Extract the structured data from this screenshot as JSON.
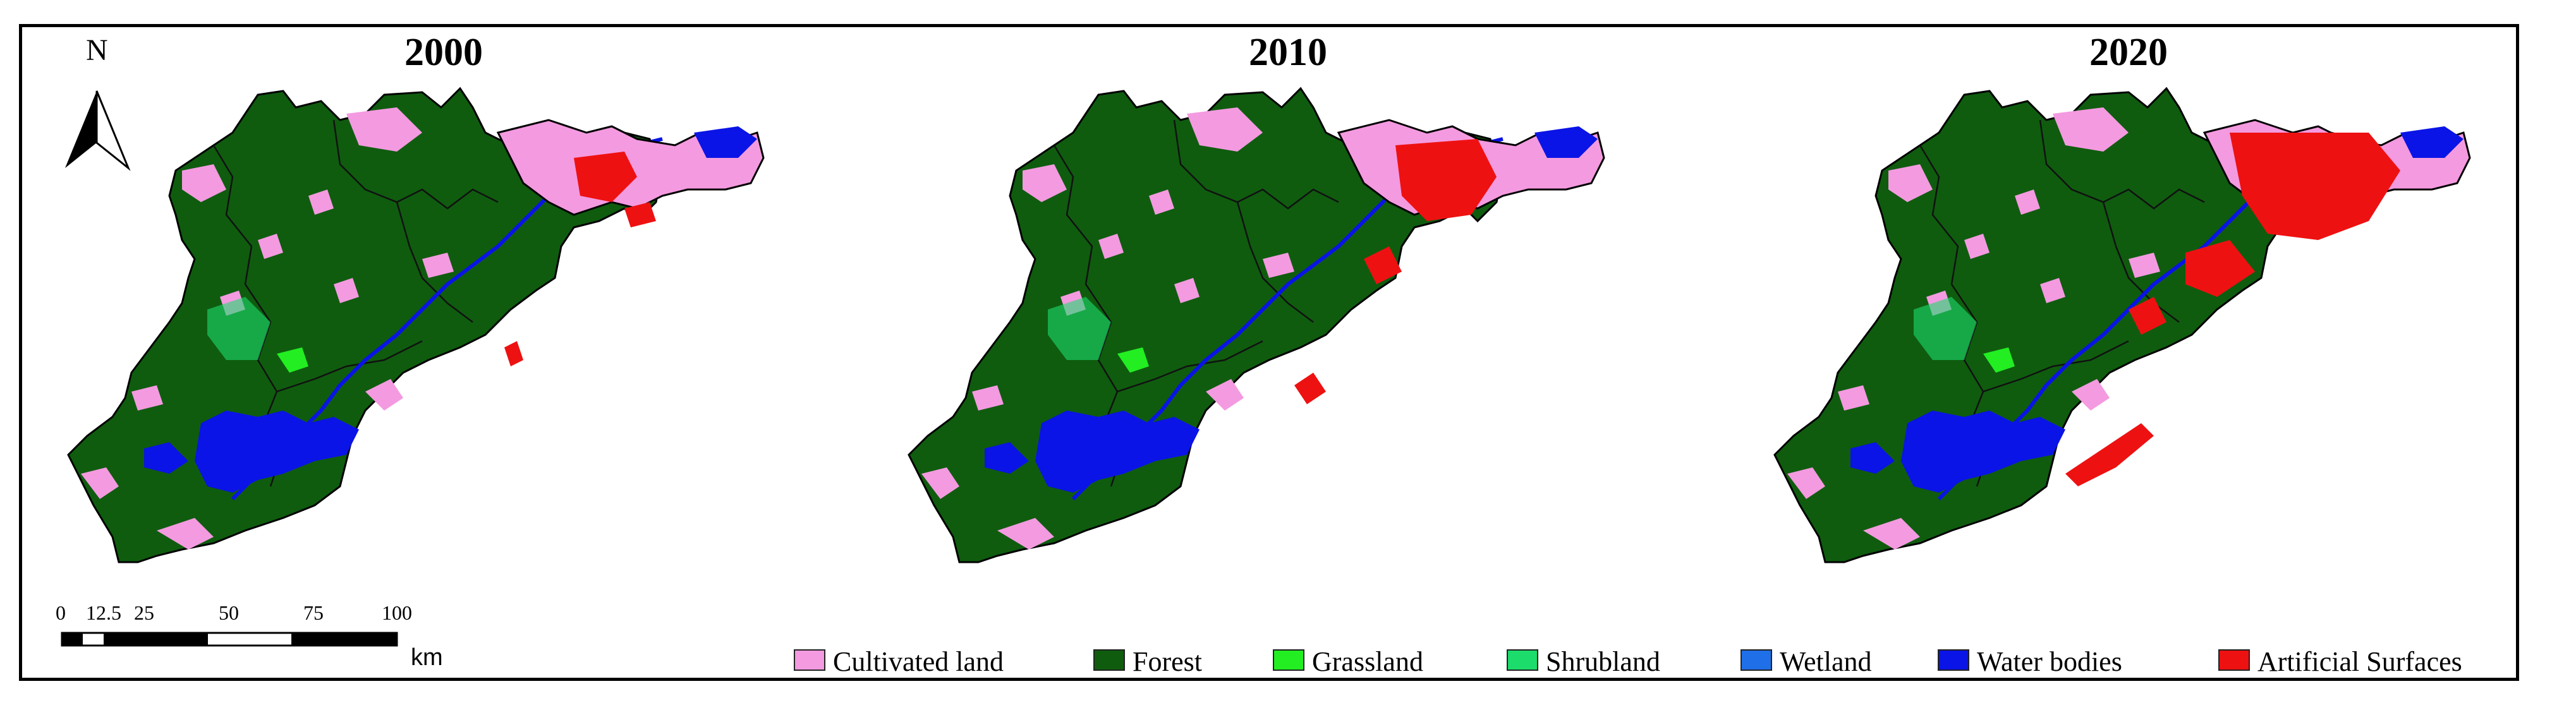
{
  "panels": [
    {
      "year": "2000"
    },
    {
      "year": "2010"
    },
    {
      "year": "2020"
    }
  ],
  "north_arrow": {
    "label": "N"
  },
  "scale_bar": {
    "ticks": [
      "0",
      "12.5",
      "25",
      "50",
      "75",
      "100"
    ],
    "unit": "km"
  },
  "legend": [
    {
      "label": "Cultivated land",
      "color": "#f49ae0"
    },
    {
      "label": "Forest",
      "color": "#0f5c0f"
    },
    {
      "label": "Grassland",
      "color": "#22ee22"
    },
    {
      "label": "Shrubland",
      "color": "#1cdc6c"
    },
    {
      "label": "Wetland",
      "color": "#1f6fe8"
    },
    {
      "label": "Water bodies",
      "color": "#0a14e6"
    },
    {
      "label": "Artificial Surfaces",
      "color": "#ee1111"
    }
  ]
}
